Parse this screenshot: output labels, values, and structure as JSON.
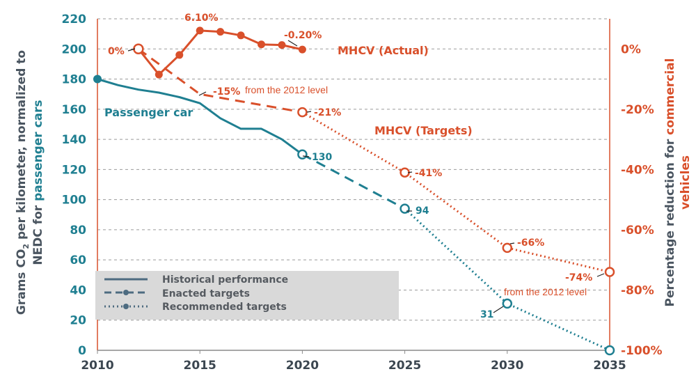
{
  "colors": {
    "teal": "#1f7f91",
    "orange": "#d9502b",
    "grid": "#9a9a9a",
    "legend_bg": "#d9d9d9",
    "legend_line": "#4d6b80",
    "axis_title_dark": "#4a5560"
  },
  "chart_data": {
    "type": "line",
    "x_ticks": [
      "2010",
      "2015",
      "2020",
      "2025",
      "2030",
      "2035"
    ],
    "xlim": [
      2010,
      2035
    ],
    "y_left": {
      "title_part1": "Grams CO",
      "title_sub": "2",
      "title_part2": " per kilometer, normalized to",
      "title_line2_a": "NEDC for ",
      "title_line2_b": "passenger cars",
      "lim": [
        0,
        220
      ],
      "ticks": [
        "0",
        "20",
        "40",
        "60",
        "80",
        "100",
        "120",
        "140",
        "160",
        "180",
        "200",
        "220"
      ]
    },
    "y_right": {
      "title_line1_a": "Percentage reduction for ",
      "title_line1_b": "commercial",
      "title_line2": "vehicles",
      "lim": [
        -100,
        10
      ],
      "ticks": [
        "0%",
        "-20%",
        "-40%",
        "-60%",
        "-80%",
        "-100%"
      ]
    },
    "legend": {
      "items": [
        "Historical performance",
        "Enacted targets",
        "Recommended targets"
      ]
    },
    "series": [
      {
        "name": "Passenger car",
        "axis": "left",
        "historical": [
          [
            2010,
            180
          ],
          [
            2011,
            176
          ],
          [
            2012,
            173
          ],
          [
            2013,
            171
          ],
          [
            2014,
            168
          ],
          [
            2015,
            164
          ],
          [
            2016,
            154
          ],
          [
            2017,
            147
          ],
          [
            2018,
            147
          ],
          [
            2019,
            140
          ],
          [
            2020,
            130
          ]
        ],
        "enacted": [
          [
            2020,
            130
          ],
          [
            2025,
            94
          ]
        ],
        "recommended": [
          [
            2025,
            94
          ],
          [
            2030,
            31
          ],
          [
            2035,
            0
          ]
        ],
        "markers": [
          [
            2010,
            180
          ],
          [
            2020,
            130
          ],
          [
            2025,
            94
          ],
          [
            2030,
            31
          ],
          [
            2035,
            0
          ]
        ]
      },
      {
        "name": "MHCV (Actual)",
        "axis": "right",
        "historical": [
          [
            2012,
            0
          ],
          [
            2013,
            -8.5
          ],
          [
            2014,
            -2
          ],
          [
            2015,
            6.1
          ],
          [
            2016,
            5.7
          ],
          [
            2017,
            4.5
          ],
          [
            2018,
            1.5
          ],
          [
            2019,
            1.3
          ],
          [
            2020,
            -0.2
          ]
        ],
        "markers": [
          [
            2012,
            0
          ],
          [
            2013,
            -8.5
          ],
          [
            2014,
            -2
          ],
          [
            2015,
            6.1
          ],
          [
            2016,
            5.7
          ],
          [
            2017,
            4.5
          ],
          [
            2018,
            1.5
          ],
          [
            2019,
            1.3
          ],
          [
            2020,
            -0.2
          ]
        ]
      },
      {
        "name": "MHCV (Targets)",
        "axis": "right",
        "enacted": [
          [
            2012,
            0
          ],
          [
            2015,
            -15
          ],
          [
            2020,
            -21
          ]
        ],
        "recommended": [
          [
            2020,
            -21
          ],
          [
            2025,
            -41
          ],
          [
            2030,
            -66
          ],
          [
            2035,
            -74
          ]
        ],
        "markers": [
          [
            2012,
            0
          ],
          [
            2020,
            -21
          ],
          [
            2025,
            -41
          ],
          [
            2030,
            -66
          ],
          [
            2035,
            -74
          ]
        ]
      }
    ],
    "annotations": {
      "pc_130": "130",
      "pc_94": "94",
      "pc_31": "31",
      "pct_6_10": "6.10%",
      "pct_neg_0_20": "-0.20%",
      "pct_0": "0%",
      "pct_neg15": "-15%",
      "from_2012_a": "from the 2012 level",
      "pct_neg21": "-21%",
      "pct_neg41": "-41%",
      "pct_neg66": "-66%",
      "pct_neg74": "-74%",
      "from_2012_b": "from the 2012 level"
    },
    "grid": "horizontal dashed"
  }
}
